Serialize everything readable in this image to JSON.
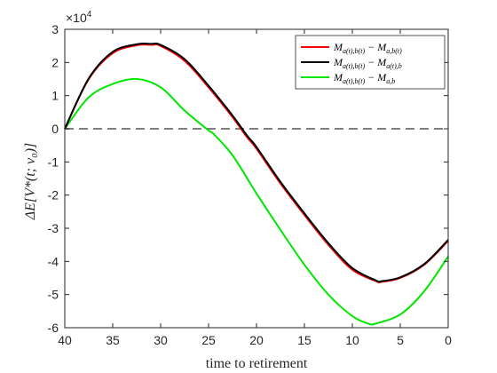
{
  "chart_data": {
    "type": "line",
    "xlabel": "time to retirement",
    "ylabel": "ΔE[V*(t; v₀)]",
    "xlim": [
      40,
      0
    ],
    "x_reversed": true,
    "ylim": [
      -6,
      3
    ],
    "y_multiplier": "×10",
    "y_multiplier_exponent": "4",
    "xticks": [
      "40",
      "35",
      "30",
      "25",
      "20",
      "15",
      "10",
      "5",
      "0"
    ],
    "yticks": [
      "3",
      "2",
      "1",
      "0",
      "-1",
      "-2",
      "-3",
      "-4",
      "-5",
      "-6"
    ],
    "zero_line": {
      "y": 0,
      "style": "dashed",
      "color": "#808080"
    },
    "grid": false,
    "legend_position": "top-right",
    "series": [
      {
        "name": "M_{a(t),b(t)} − M_{a,b(t)}",
        "legend_main": "M",
        "legend_sub1": "a(t),b(t)",
        "legend_mid": " − M",
        "legend_sub2": "a,b(t)",
        "color": "#ff0000",
        "x": [
          40,
          37.5,
          35,
          32.5,
          31,
          30,
          27.5,
          25,
          22.5,
          21,
          20,
          17.5,
          15,
          12.5,
          10,
          7.5,
          7,
          5,
          2.5,
          0
        ],
        "y": [
          0,
          1.5,
          2.28,
          2.52,
          2.53,
          2.5,
          2.05,
          1.25,
          0.35,
          -0.25,
          -0.6,
          -1.65,
          -2.6,
          -3.5,
          -4.25,
          -4.6,
          -4.62,
          -4.5,
          -4.1,
          -3.38
        ]
      },
      {
        "name": "M_{a(t),b(t)} − M_{a(t),b}",
        "legend_main": "M",
        "legend_sub1": "a(t),b(t)",
        "legend_mid": " − M",
        "legend_sub2": "a(t),b",
        "color": "#000000",
        "x": [
          40,
          37.5,
          35,
          32.5,
          31,
          30,
          27.5,
          25,
          22.5,
          21,
          20,
          17.5,
          15,
          12.5,
          10,
          7.5,
          7,
          5,
          2.5,
          0
        ],
        "y": [
          0,
          1.52,
          2.32,
          2.55,
          2.56,
          2.53,
          2.1,
          1.3,
          0.4,
          -0.2,
          -0.55,
          -1.6,
          -2.55,
          -3.45,
          -4.2,
          -4.58,
          -4.6,
          -4.48,
          -4.08,
          -3.35
        ]
      },
      {
        "name": "M_{a(t),b(t)} − M_{a,b}",
        "legend_main": "M",
        "legend_sub1": "a(t),b(t)",
        "legend_mid": " − M",
        "legend_sub2": "a,b",
        "color": "#00e600",
        "x": [
          40,
          37.5,
          35,
          32.5,
          30,
          27.5,
          25,
          24.5,
          22.5,
          20,
          17.5,
          15,
          12.5,
          10,
          8.3,
          7.5,
          5,
          2.5,
          0
        ],
        "y": [
          0,
          0.95,
          1.35,
          1.5,
          1.25,
          0.55,
          -0.05,
          -0.15,
          -0.8,
          -1.95,
          -3.05,
          -4.1,
          -5.0,
          -5.65,
          -5.88,
          -5.87,
          -5.6,
          -4.9,
          -3.85
        ]
      }
    ]
  }
}
